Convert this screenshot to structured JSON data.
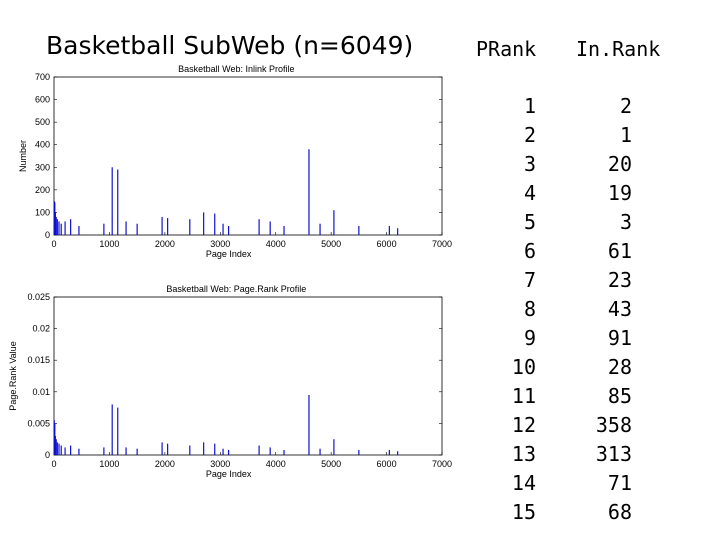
{
  "slide": {
    "title": "Basketball SubWeb (n=6049)"
  },
  "table": {
    "headers": [
      "PRank",
      "In.Rank"
    ],
    "prank": [
      "1",
      "2",
      "3",
      "4",
      "5",
      "6",
      "7",
      "8",
      "9",
      "10",
      "11",
      "12",
      "13",
      "14",
      "15"
    ],
    "inrank": [
      "2",
      "1",
      "20",
      "19",
      "3",
      "61",
      "23",
      "43",
      "91",
      "28",
      "85",
      "358",
      "313",
      "71",
      "68"
    ]
  },
  "chart_data": [
    {
      "type": "bar",
      "title": "Basketball Web:  Inlink Profile",
      "xlabel": "Page Index",
      "ylabel": "Number",
      "xlim": [
        0,
        7000
      ],
      "ylim": [
        0,
        700
      ],
      "xticks": [
        "0",
        "1000",
        "2000",
        "3000",
        "4000",
        "5000",
        "6000",
        "7000"
      ],
      "yticks": [
        "0",
        "100",
        "200",
        "300",
        "400",
        "500",
        "600",
        "700"
      ],
      "x": [
        5,
        15,
        25,
        40,
        60,
        90,
        130,
        200,
        300,
        450,
        900,
        1050,
        1150,
        1300,
        1500,
        1950,
        2050,
        2450,
        2700,
        2900,
        3050,
        3150,
        3700,
        3900,
        4150,
        4600,
        4800,
        5050,
        5500,
        6050,
        6200
      ],
      "values": [
        150,
        145,
        100,
        80,
        70,
        60,
        50,
        60,
        70,
        40,
        50,
        300,
        290,
        60,
        50,
        80,
        75,
        70,
        100,
        95,
        50,
        40,
        70,
        60,
        40,
        380,
        50,
        110,
        40,
        40,
        30
      ]
    },
    {
      "type": "bar",
      "title": "Basketball Web:   Page.Rank Profile",
      "xlabel": "Page Index",
      "ylabel": "Page.Rank Value",
      "xlim": [
        0,
        7000
      ],
      "ylim": [
        0,
        0.025
      ],
      "xticks": [
        "0",
        "1000",
        "2000",
        "3000",
        "4000",
        "5000",
        "6000",
        "7000"
      ],
      "yticks": [
        "0",
        "0.005",
        "0.01",
        "0.015",
        "0.02",
        "0.025"
      ],
      "x": [
        5,
        15,
        25,
        40,
        60,
        90,
        130,
        200,
        300,
        450,
        900,
        1050,
        1150,
        1300,
        1500,
        1950,
        2050,
        2450,
        2700,
        2900,
        3050,
        3150,
        3700,
        3900,
        4150,
        4600,
        4800,
        5050,
        5500,
        6050,
        6200
      ],
      "values": [
        0.0055,
        0.005,
        0.003,
        0.0025,
        0.002,
        0.0018,
        0.0015,
        0.0012,
        0.0015,
        0.001,
        0.0012,
        0.008,
        0.0075,
        0.0012,
        0.001,
        0.002,
        0.0018,
        0.0015,
        0.002,
        0.0018,
        0.001,
        0.0008,
        0.0015,
        0.0012,
        0.0008,
        0.0095,
        0.001,
        0.0025,
        0.0008,
        0.0008,
        0.0006
      ]
    }
  ]
}
